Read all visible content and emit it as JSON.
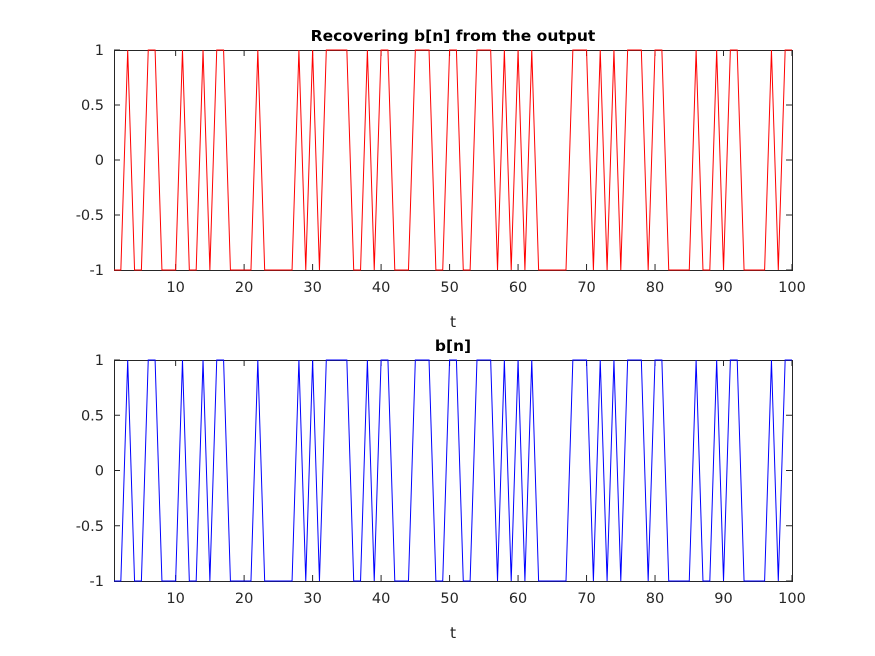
{
  "chart_data": [
    {
      "type": "line",
      "title": "Recovering b[n] from  the output",
      "xlabel": "t",
      "ylabel": "",
      "xlim": [
        1,
        100
      ],
      "ylim": [
        -1,
        1
      ],
      "xticks": [
        "10",
        "20",
        "30",
        "40",
        "50",
        "60",
        "70",
        "80",
        "90",
        "100"
      ],
      "yticks": [
        "-1",
        "-0.5",
        "0",
        "0.5",
        "1"
      ],
      "grid": false,
      "color": "#ff0000",
      "series": [
        {
          "x": [
            1,
            2,
            3,
            4,
            5,
            6,
            7,
            8,
            9,
            10,
            11,
            12,
            13,
            14,
            15,
            16,
            17,
            18,
            19,
            20,
            21,
            22,
            23,
            24,
            25,
            26,
            27,
            28,
            29,
            30,
            31,
            32,
            33,
            34,
            35,
            36,
            37,
            38,
            39,
            40,
            41,
            42,
            43,
            44,
            45,
            46,
            47,
            48,
            49,
            50,
            51,
            52,
            53,
            54,
            55,
            56,
            57,
            58,
            59,
            60,
            61,
            62,
            63,
            64,
            65,
            66,
            67,
            68,
            69,
            70,
            71,
            72,
            73,
            74,
            75,
            76,
            77,
            78,
            79,
            80,
            81,
            82,
            83,
            84,
            85,
            86,
            87,
            88,
            89,
            90,
            91,
            92,
            93,
            94,
            95,
            96,
            97,
            98,
            99,
            100
          ],
          "values": [
            -1,
            -1,
            1,
            -1,
            -1,
            1,
            1,
            -1,
            -1,
            -1,
            1,
            -1,
            -1,
            1,
            -1,
            1,
            1,
            -1,
            -1,
            -1,
            -1,
            1,
            -1,
            -1,
            -1,
            -1,
            -1,
            1,
            -1,
            1,
            -1,
            1,
            1,
            1,
            1,
            -1,
            -1,
            1,
            -1,
            1,
            1,
            -1,
            -1,
            -1,
            1,
            1,
            1,
            -1,
            -1,
            1,
            1,
            -1,
            -1,
            1,
            1,
            1,
            -1,
            1,
            -1,
            1,
            -1,
            1,
            -1,
            -1,
            -1,
            -1,
            -1,
            1,
            1,
            1,
            -1,
            1,
            -1,
            1,
            -1,
            1,
            1,
            1,
            -1,
            1,
            1,
            -1,
            -1,
            -1,
            -1,
            1,
            -1,
            -1,
            1,
            -1,
            1,
            1,
            -1,
            -1,
            -1,
            -1,
            1,
            -1,
            1,
            1
          ]
        }
      ]
    },
    {
      "type": "line",
      "title": "b[n]",
      "xlabel": "t",
      "ylabel": "",
      "xlim": [
        1,
        100
      ],
      "ylim": [
        -1,
        1
      ],
      "xticks": [
        "10",
        "20",
        "30",
        "40",
        "50",
        "60",
        "70",
        "80",
        "90",
        "100"
      ],
      "yticks": [
        "-1",
        "-0.5",
        "0",
        "0.5",
        "1"
      ],
      "grid": false,
      "color": "#0000ff",
      "series": [
        {
          "x": [
            1,
            2,
            3,
            4,
            5,
            6,
            7,
            8,
            9,
            10,
            11,
            12,
            13,
            14,
            15,
            16,
            17,
            18,
            19,
            20,
            21,
            22,
            23,
            24,
            25,
            26,
            27,
            28,
            29,
            30,
            31,
            32,
            33,
            34,
            35,
            36,
            37,
            38,
            39,
            40,
            41,
            42,
            43,
            44,
            45,
            46,
            47,
            48,
            49,
            50,
            51,
            52,
            53,
            54,
            55,
            56,
            57,
            58,
            59,
            60,
            61,
            62,
            63,
            64,
            65,
            66,
            67,
            68,
            69,
            70,
            71,
            72,
            73,
            74,
            75,
            76,
            77,
            78,
            79,
            80,
            81,
            82,
            83,
            84,
            85,
            86,
            87,
            88,
            89,
            90,
            91,
            92,
            93,
            94,
            95,
            96,
            97,
            98,
            99,
            100
          ],
          "values": [
            -1,
            -1,
            1,
            -1,
            -1,
            1,
            1,
            -1,
            -1,
            -1,
            1,
            -1,
            -1,
            1,
            -1,
            1,
            1,
            -1,
            -1,
            -1,
            -1,
            1,
            -1,
            -1,
            -1,
            -1,
            -1,
            1,
            -1,
            1,
            -1,
            1,
            1,
            1,
            1,
            -1,
            -1,
            1,
            -1,
            1,
            1,
            -1,
            -1,
            -1,
            1,
            1,
            1,
            -1,
            -1,
            1,
            1,
            -1,
            -1,
            1,
            1,
            1,
            -1,
            1,
            -1,
            1,
            -1,
            1,
            -1,
            -1,
            -1,
            -1,
            -1,
            1,
            1,
            1,
            -1,
            1,
            -1,
            1,
            -1,
            1,
            1,
            1,
            -1,
            1,
            1,
            -1,
            -1,
            -1,
            -1,
            1,
            -1,
            -1,
            1,
            -1,
            1,
            1,
            -1,
            -1,
            -1,
            -1,
            1,
            -1,
            1,
            1
          ]
        }
      ]
    }
  ]
}
